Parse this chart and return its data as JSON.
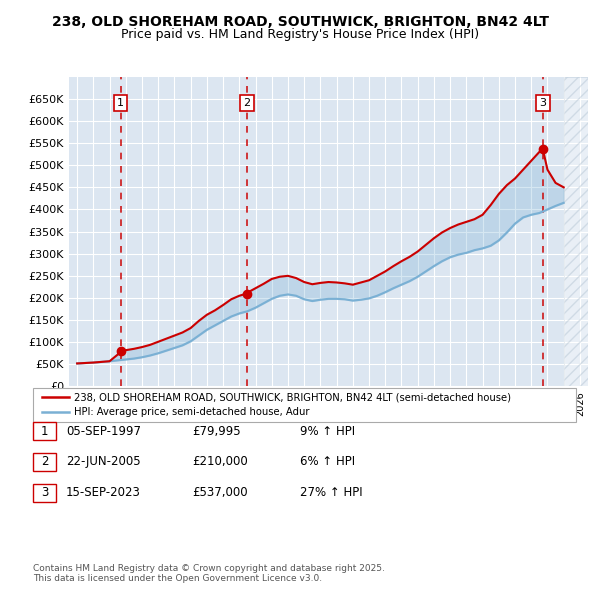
{
  "title_line1": "238, OLD SHOREHAM ROAD, SOUTHWICK, BRIGHTON, BN42 4LT",
  "title_line2": "Price paid vs. HM Land Registry's House Price Index (HPI)",
  "plot_bg_color": "#dce6f1",
  "grid_color": "#ffffff",
  "red_line_color": "#cc0000",
  "blue_line_color": "#7ab0d4",
  "ylim": [
    0,
    700000
  ],
  "yticks": [
    0,
    50000,
    100000,
    150000,
    200000,
    250000,
    300000,
    350000,
    400000,
    450000,
    500000,
    550000,
    600000,
    650000
  ],
  "ytick_labels": [
    "£0",
    "£50K",
    "£100K",
    "£150K",
    "£200K",
    "£250K",
    "£300K",
    "£350K",
    "£400K",
    "£450K",
    "£500K",
    "£550K",
    "£600K",
    "£650K"
  ],
  "xlim_start": 1994.5,
  "xlim_end": 2026.5,
  "sale_dates": [
    1997.68,
    2005.47,
    2023.71
  ],
  "sale_prices": [
    79995,
    210000,
    537000
  ],
  "sale_labels": [
    "1",
    "2",
    "3"
  ],
  "legend_line1": "238, OLD SHOREHAM ROAD, SOUTHWICK, BRIGHTON, BN42 4LT (semi-detached house)",
  "legend_line2": "HPI: Average price, semi-detached house, Adur",
  "table_data": [
    [
      "1",
      "05-SEP-1997",
      "£79,995",
      "9% ↑ HPI"
    ],
    [
      "2",
      "22-JUN-2005",
      "£210,000",
      "6% ↑ HPI"
    ],
    [
      "3",
      "15-SEP-2023",
      "£537,000",
      "27% ↑ HPI"
    ]
  ],
  "footer": "Contains HM Land Registry data © Crown copyright and database right 2025.\nThis data is licensed under the Open Government Licence v3.0.",
  "hpi_years": [
    1995,
    1995.5,
    1996,
    1996.5,
    1997,
    1997.5,
    1998,
    1998.5,
    1999,
    1999.5,
    2000,
    2000.5,
    2001,
    2001.5,
    2002,
    2002.5,
    2003,
    2003.5,
    2004,
    2004.5,
    2005,
    2005.5,
    2006,
    2006.5,
    2007,
    2007.5,
    2008,
    2008.5,
    2009,
    2009.5,
    2010,
    2010.5,
    2011,
    2011.5,
    2012,
    2012.5,
    2013,
    2013.5,
    2014,
    2014.5,
    2015,
    2015.5,
    2016,
    2016.5,
    2017,
    2017.5,
    2018,
    2018.5,
    2019,
    2019.5,
    2020,
    2020.5,
    2021,
    2021.5,
    2022,
    2022.5,
    2023,
    2023.5,
    2024,
    2024.5,
    2025
  ],
  "hpi_values": [
    52000,
    53000,
    54000,
    55500,
    57000,
    59000,
    61000,
    63000,
    66000,
    70000,
    75000,
    81000,
    87000,
    93000,
    102000,
    115000,
    128000,
    138000,
    148000,
    158000,
    165000,
    170000,
    178000,
    188000,
    198000,
    205000,
    208000,
    205000,
    197000,
    193000,
    196000,
    198000,
    198000,
    197000,
    194000,
    196000,
    199000,
    205000,
    213000,
    222000,
    230000,
    238000,
    248000,
    260000,
    272000,
    283000,
    292000,
    298000,
    302000,
    308000,
    312000,
    318000,
    330000,
    348000,
    368000,
    382000,
    388000,
    392000,
    400000,
    408000,
    415000
  ],
  "price_years": [
    1995,
    1995.5,
    1996,
    1996.5,
    1997,
    1997.5,
    1997.68,
    1998,
    1998.5,
    1999,
    1999.5,
    2000,
    2000.5,
    2001,
    2001.5,
    2002,
    2002.5,
    2003,
    2003.5,
    2004,
    2004.5,
    2005,
    2005.47,
    2005.5,
    2006,
    2006.5,
    2007,
    2007.5,
    2008,
    2008.5,
    2009,
    2009.5,
    2010,
    2010.5,
    2011,
    2011.5,
    2012,
    2012.5,
    2013,
    2013.5,
    2014,
    2014.5,
    2015,
    2015.5,
    2016,
    2016.5,
    2017,
    2017.5,
    2018,
    2018.5,
    2019,
    2019.5,
    2020,
    2020.5,
    2021,
    2021.5,
    2022,
    2022.5,
    2023,
    2023.5,
    2023.71,
    2024,
    2024.5,
    2025
  ],
  "price_values": [
    52000,
    53000,
    54000,
    55500,
    57000,
    72000,
    79995,
    82000,
    85000,
    89000,
    94000,
    101000,
    108000,
    115000,
    122000,
    132000,
    148000,
    162000,
    172000,
    184000,
    197000,
    205000,
    210000,
    212000,
    222000,
    232000,
    243000,
    248000,
    250000,
    245000,
    236000,
    231000,
    234000,
    236000,
    235000,
    233000,
    230000,
    235000,
    240000,
    250000,
    260000,
    272000,
    283000,
    293000,
    305000,
    320000,
    335000,
    348000,
    358000,
    366000,
    372000,
    378000,
    388000,
    410000,
    435000,
    455000,
    470000,
    490000,
    510000,
    530000,
    537000,
    490000,
    460000,
    450000
  ]
}
